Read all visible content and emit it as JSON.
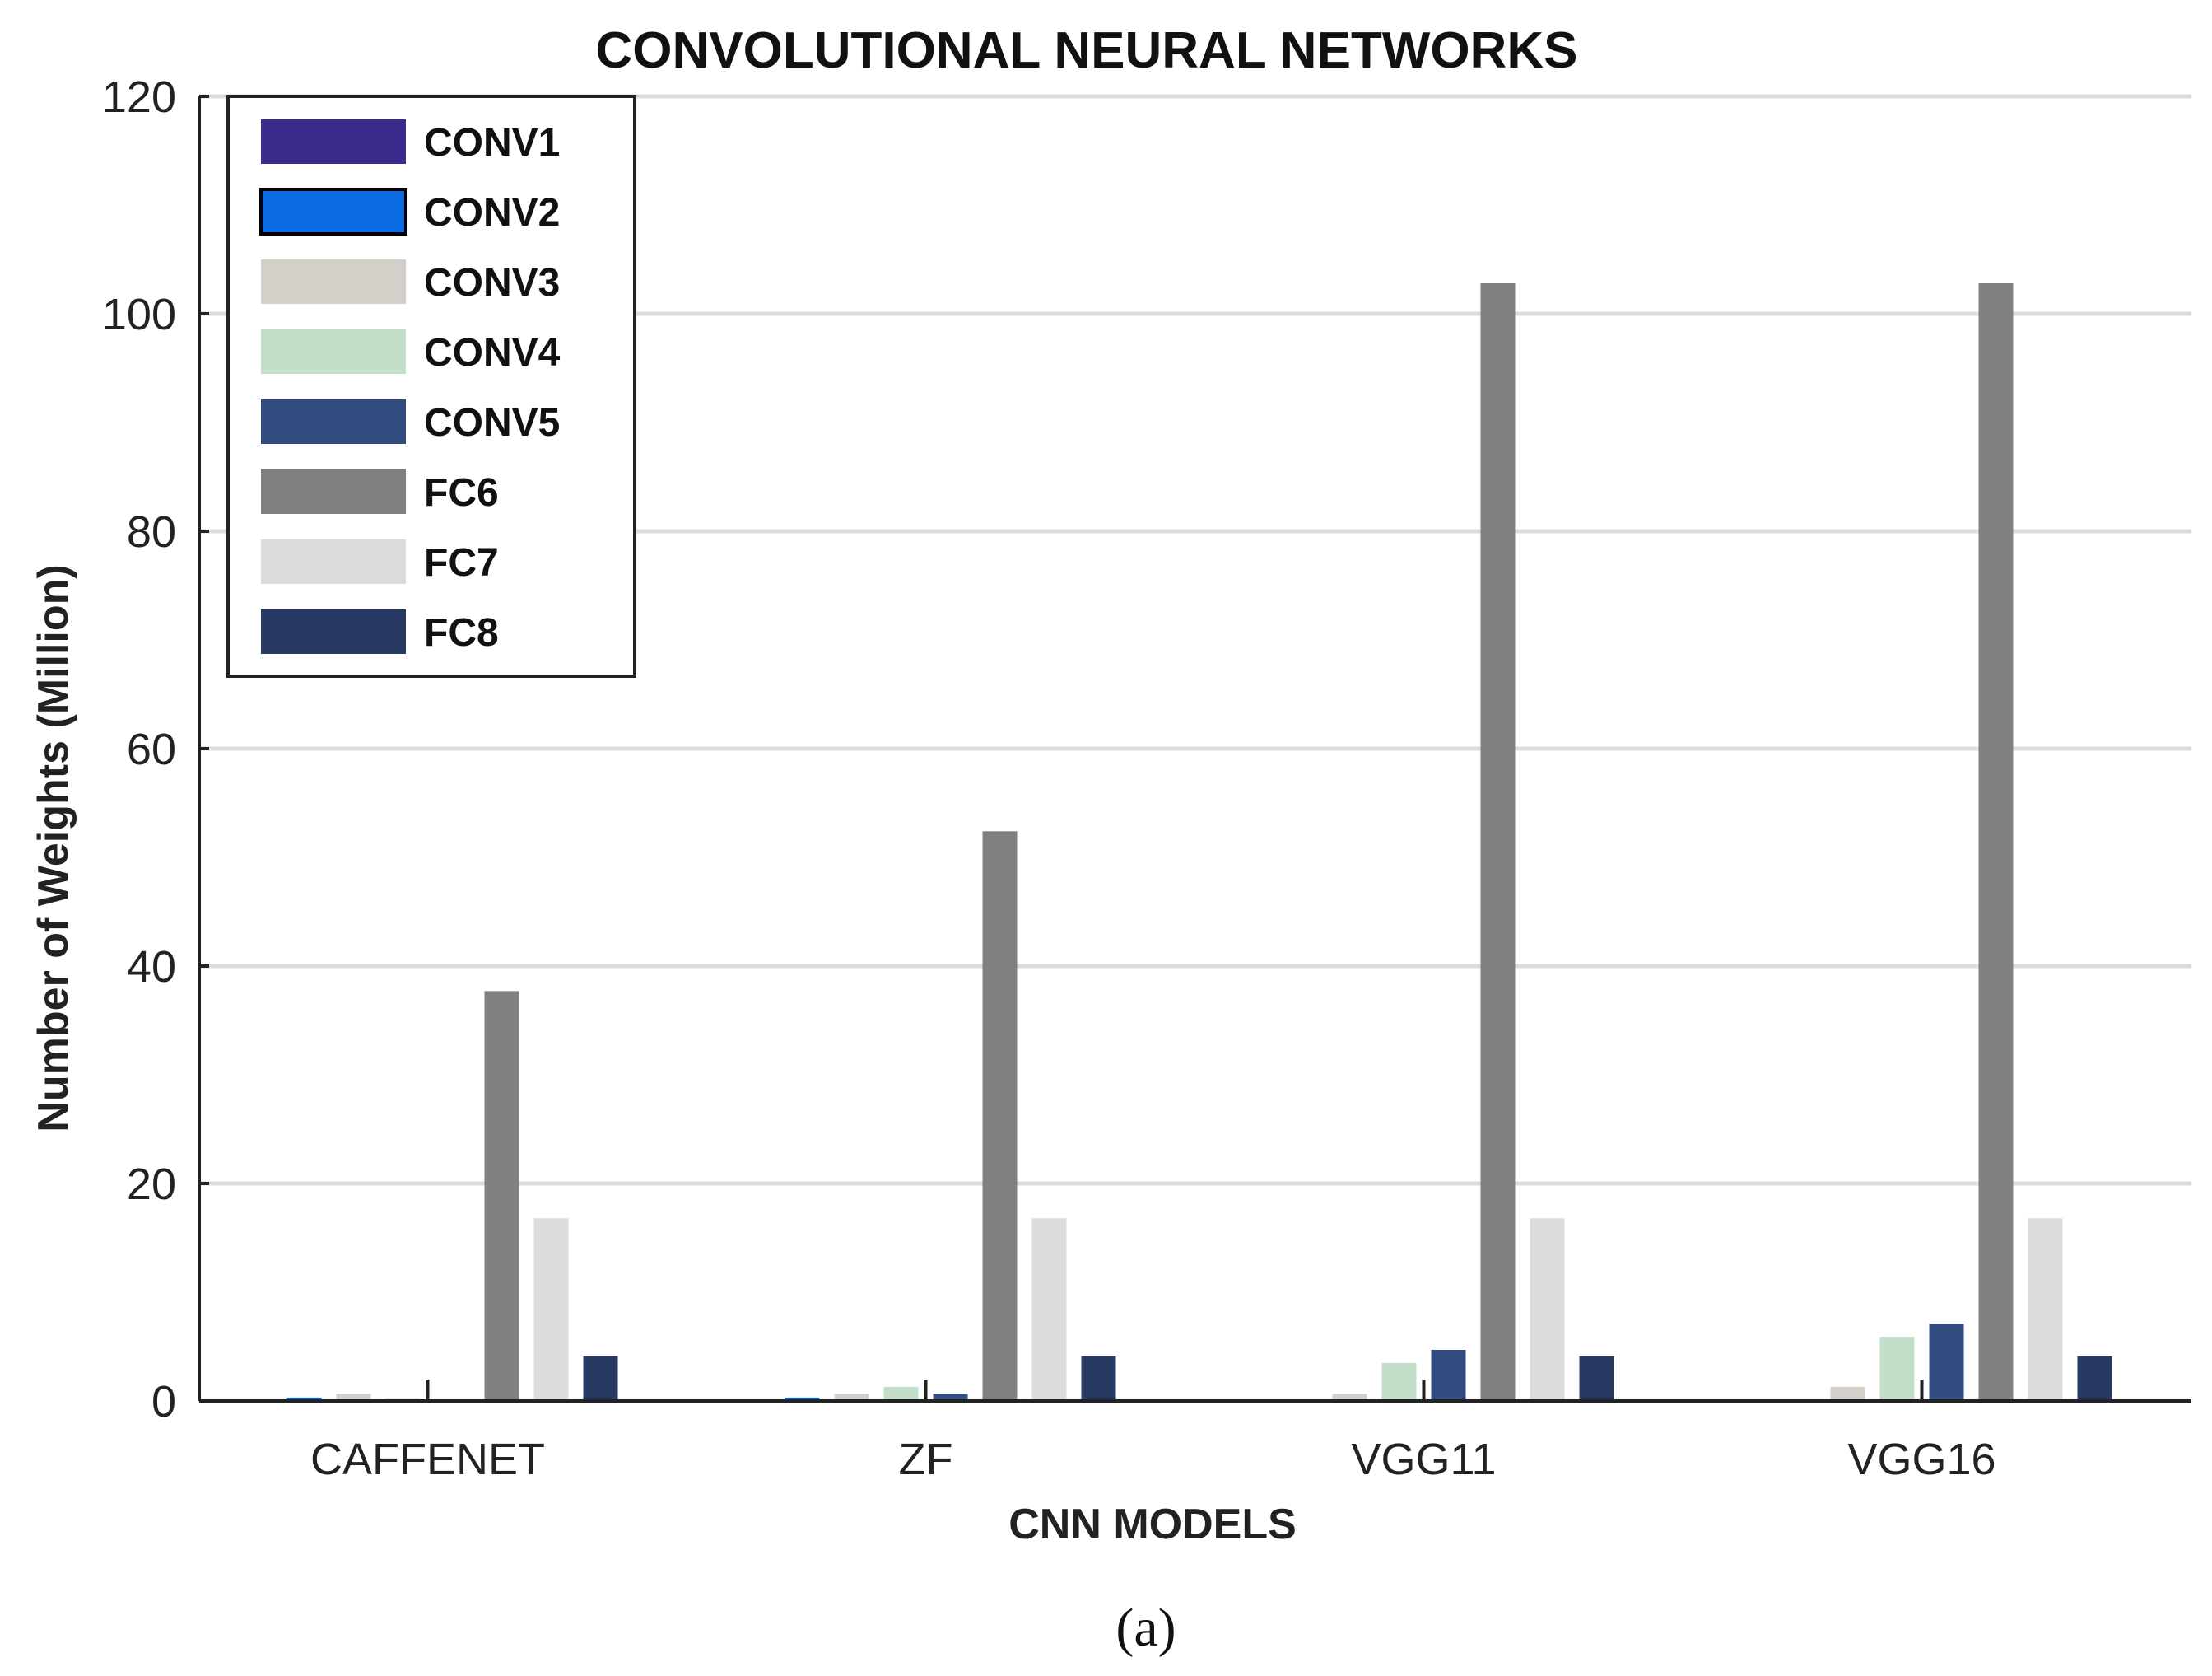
{
  "chart_data": {
    "type": "bar",
    "title": "CONVOLUTIONAL NEURAL NETWORKS",
    "xlabel": "CNN MODELS",
    "ylabel": "Number of Weights (Million)",
    "caption": "(a)",
    "categories": [
      "CAFFENET",
      "ZF",
      "VGG11",
      "VGG16"
    ],
    "ylim": [
      0,
      120
    ],
    "yticks": [
      "0",
      "20",
      "40",
      "60",
      "80",
      "100",
      "120"
    ],
    "grid": "horizontal",
    "legend_position": "top-left",
    "series": [
      {
        "name": "CONV1",
        "color": "#3a2a8c",
        "values": [
          0.03,
          0.03,
          0.002,
          0.002
        ]
      },
      {
        "name": "CONV2",
        "color": "#0a6be0",
        "values": [
          0.31,
          0.31,
          0.07,
          0.04
        ]
      },
      {
        "name": "CONV3",
        "color": "#d4cfc8",
        "values": [
          0.66,
          0.66,
          0.66,
          1.3
        ]
      },
      {
        "name": "CONV4",
        "color": "#c4dfc9",
        "values": [
          0.2,
          1.3,
          3.5,
          5.9
        ]
      },
      {
        "name": "CONV5",
        "color": "#324c80",
        "values": [
          0.1,
          0.66,
          4.7,
          7.1
        ]
      },
      {
        "name": "FC6",
        "color": "#808080",
        "values": [
          37.7,
          52.4,
          102.8,
          102.8
        ]
      },
      {
        "name": "FC7",
        "color": "#dcdcdc",
        "values": [
          16.8,
          16.8,
          16.8,
          16.8
        ]
      },
      {
        "name": "FC8",
        "color": "#273a63",
        "values": [
          4.1,
          4.1,
          4.1,
          4.1
        ]
      }
    ]
  }
}
